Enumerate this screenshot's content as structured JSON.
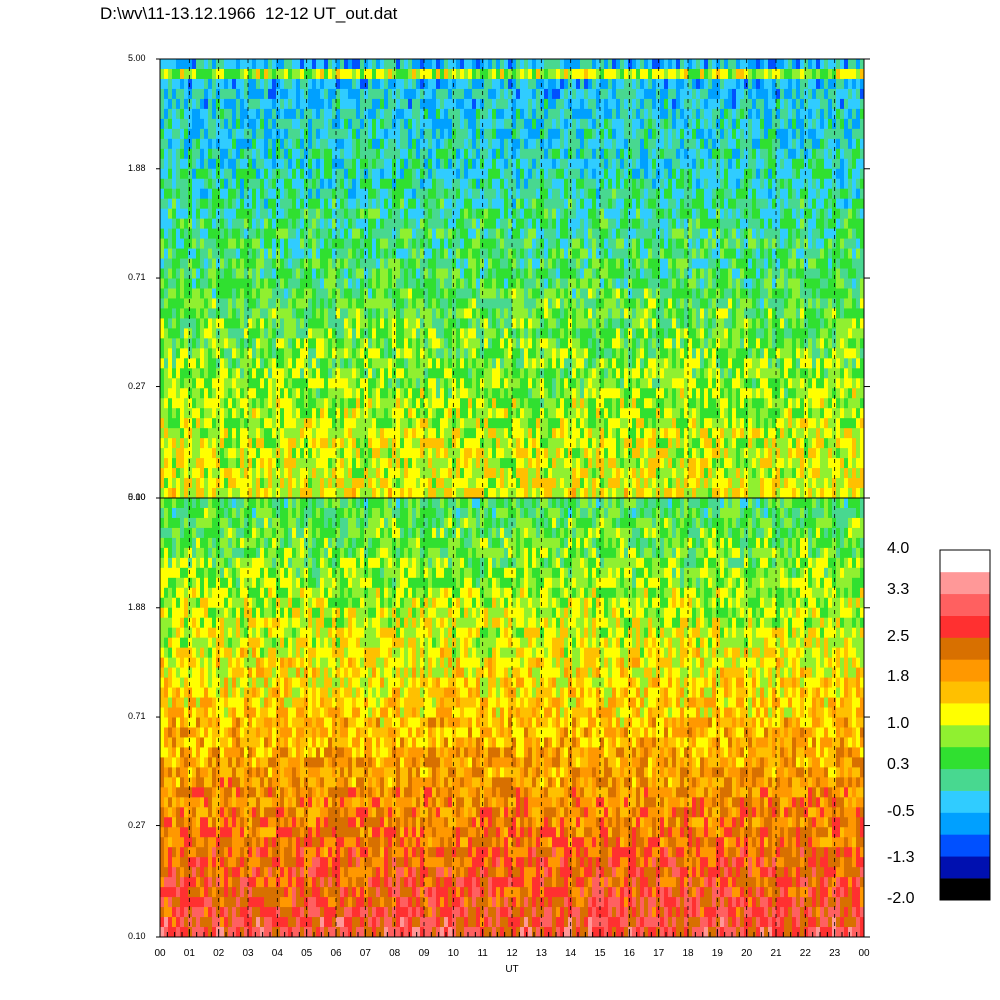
{
  "title": "D:\\wv\\11-13.12.1966  12-12 UT_out.dat",
  "chart_data": {
    "type": "heatmap",
    "xlabel": "UT",
    "x_ticks": [
      "00",
      "01",
      "02",
      "03",
      "04",
      "05",
      "06",
      "07",
      "08",
      "09",
      "10",
      "11",
      "12",
      "13",
      "14",
      "15",
      "16",
      "17",
      "18",
      "19",
      "20",
      "21",
      "22",
      "23",
      "00"
    ],
    "panels": [
      {
        "name": "upper",
        "y_ticks": [
          "5.00",
          "1.88",
          "0.71",
          "0.27",
          "0.10"
        ],
        "ylim": [
          0.1,
          5.0
        ],
        "y_scale": "log"
      },
      {
        "name": "lower",
        "y_ticks": [
          "5.00",
          "1.88",
          "0.71",
          "0.27",
          "0.10"
        ],
        "ylim": [
          0.1,
          5.0
        ],
        "y_scale": "log"
      }
    ],
    "colorbar": {
      "labels": [
        "4.0",
        "3.3",
        "2.5",
        "1.8",
        "1.0",
        "0.3",
        "-0.5",
        "-1.3",
        "-2.0"
      ],
      "range": [
        -2.0,
        4.0
      ],
      "colors": [
        "#000000",
        "#0010b0",
        "#0050ff",
        "#00a0ff",
        "#30ccff",
        "#48d890",
        "#30e030",
        "#90f030",
        "#ffff00",
        "#ffc000",
        "#ff9800",
        "#d87000",
        "#ff3030",
        "#ff6060",
        "#ff9898",
        "#ffffff"
      ]
    },
    "grid": "dashed vertical at each hour"
  }
}
